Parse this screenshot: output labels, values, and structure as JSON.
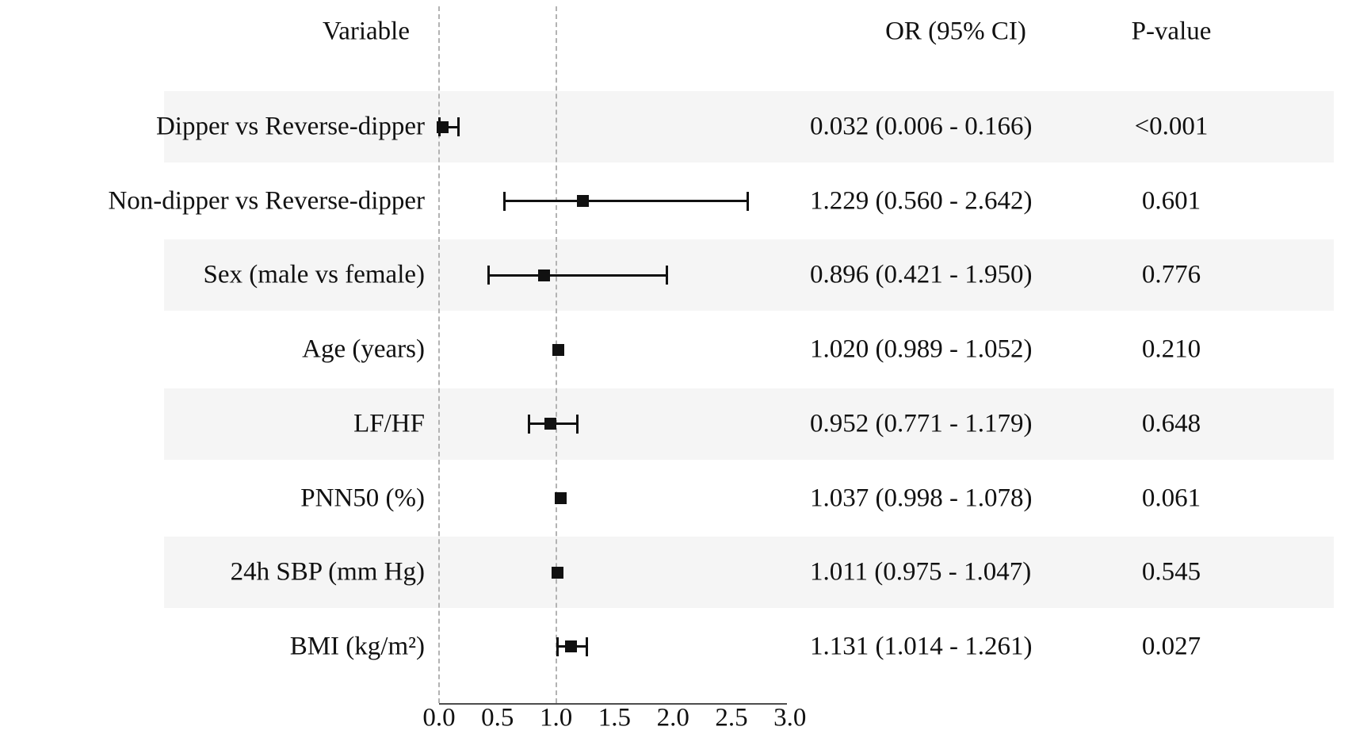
{
  "chart_data": {
    "type": "forest",
    "title": "",
    "columns": {
      "variable": "Variable",
      "or_ci": "OR (95% CI)",
      "p": "P-value"
    },
    "rows": [
      {
        "variable": "Dipper vs Reverse-dipper",
        "or": 0.032,
        "ci_low": 0.006,
        "ci_high": 0.166,
        "or_ci_label": "0.032 (0.006 - 0.166)",
        "p_label": "<0.001",
        "shaded": true
      },
      {
        "variable": "Non-dipper vs Reverse-dipper",
        "or": 1.229,
        "ci_low": 0.56,
        "ci_high": 2.642,
        "or_ci_label": "1.229 (0.560 - 2.642)",
        "p_label": "0.601",
        "shaded": false
      },
      {
        "variable": "Sex (male vs female)",
        "or": 0.896,
        "ci_low": 0.421,
        "ci_high": 1.95,
        "or_ci_label": "0.896 (0.421 - 1.950)",
        "p_label": "0.776",
        "shaded": true
      },
      {
        "variable": "Age (years)",
        "or": 1.02,
        "ci_low": 0.989,
        "ci_high": 1.052,
        "or_ci_label": "1.020 (0.989 - 1.052)",
        "p_label": "0.210",
        "shaded": false
      },
      {
        "variable": "LF/HF",
        "or": 0.952,
        "ci_low": 0.771,
        "ci_high": 1.179,
        "or_ci_label": "0.952 (0.771 - 1.179)",
        "p_label": "0.648",
        "shaded": true
      },
      {
        "variable": "PNN50 (%)",
        "or": 1.037,
        "ci_low": 0.998,
        "ci_high": 1.078,
        "or_ci_label": "1.037 (0.998 - 1.078)",
        "p_label": "0.061",
        "shaded": false
      },
      {
        "variable": "24h SBP (mm Hg)",
        "or": 1.011,
        "ci_low": 0.975,
        "ci_high": 1.047,
        "or_ci_label": "1.011 (0.975 - 1.047)",
        "p_label": "0.545",
        "shaded": true
      },
      {
        "variable": "BMI (kg/m²)",
        "or": 1.131,
        "ci_low": 1.014,
        "ci_high": 1.261,
        "or_ci_label": "1.131 (1.014 - 1.261)",
        "p_label": "0.027",
        "shaded": false
      }
    ],
    "x_axis": {
      "min": 0.0,
      "max": 3.0,
      "tick_labels": [
        "0.0",
        "0.5",
        "1.0",
        "1.5",
        "2.0",
        "2.5",
        "3.0"
      ],
      "tick_values": [
        0.0,
        0.5,
        1.0,
        1.5,
        2.0,
        2.5,
        3.0
      ],
      "reference_lines": [
        0.0,
        1.0
      ],
      "grid": "dashed-vertical"
    },
    "legend": null,
    "colors": {
      "band": "#f5f5f5",
      "grid": "#b3b3b3",
      "axis": "#4d4d4d",
      "marker": "#111111",
      "text": "#111111",
      "background": "#ffffff"
    }
  }
}
